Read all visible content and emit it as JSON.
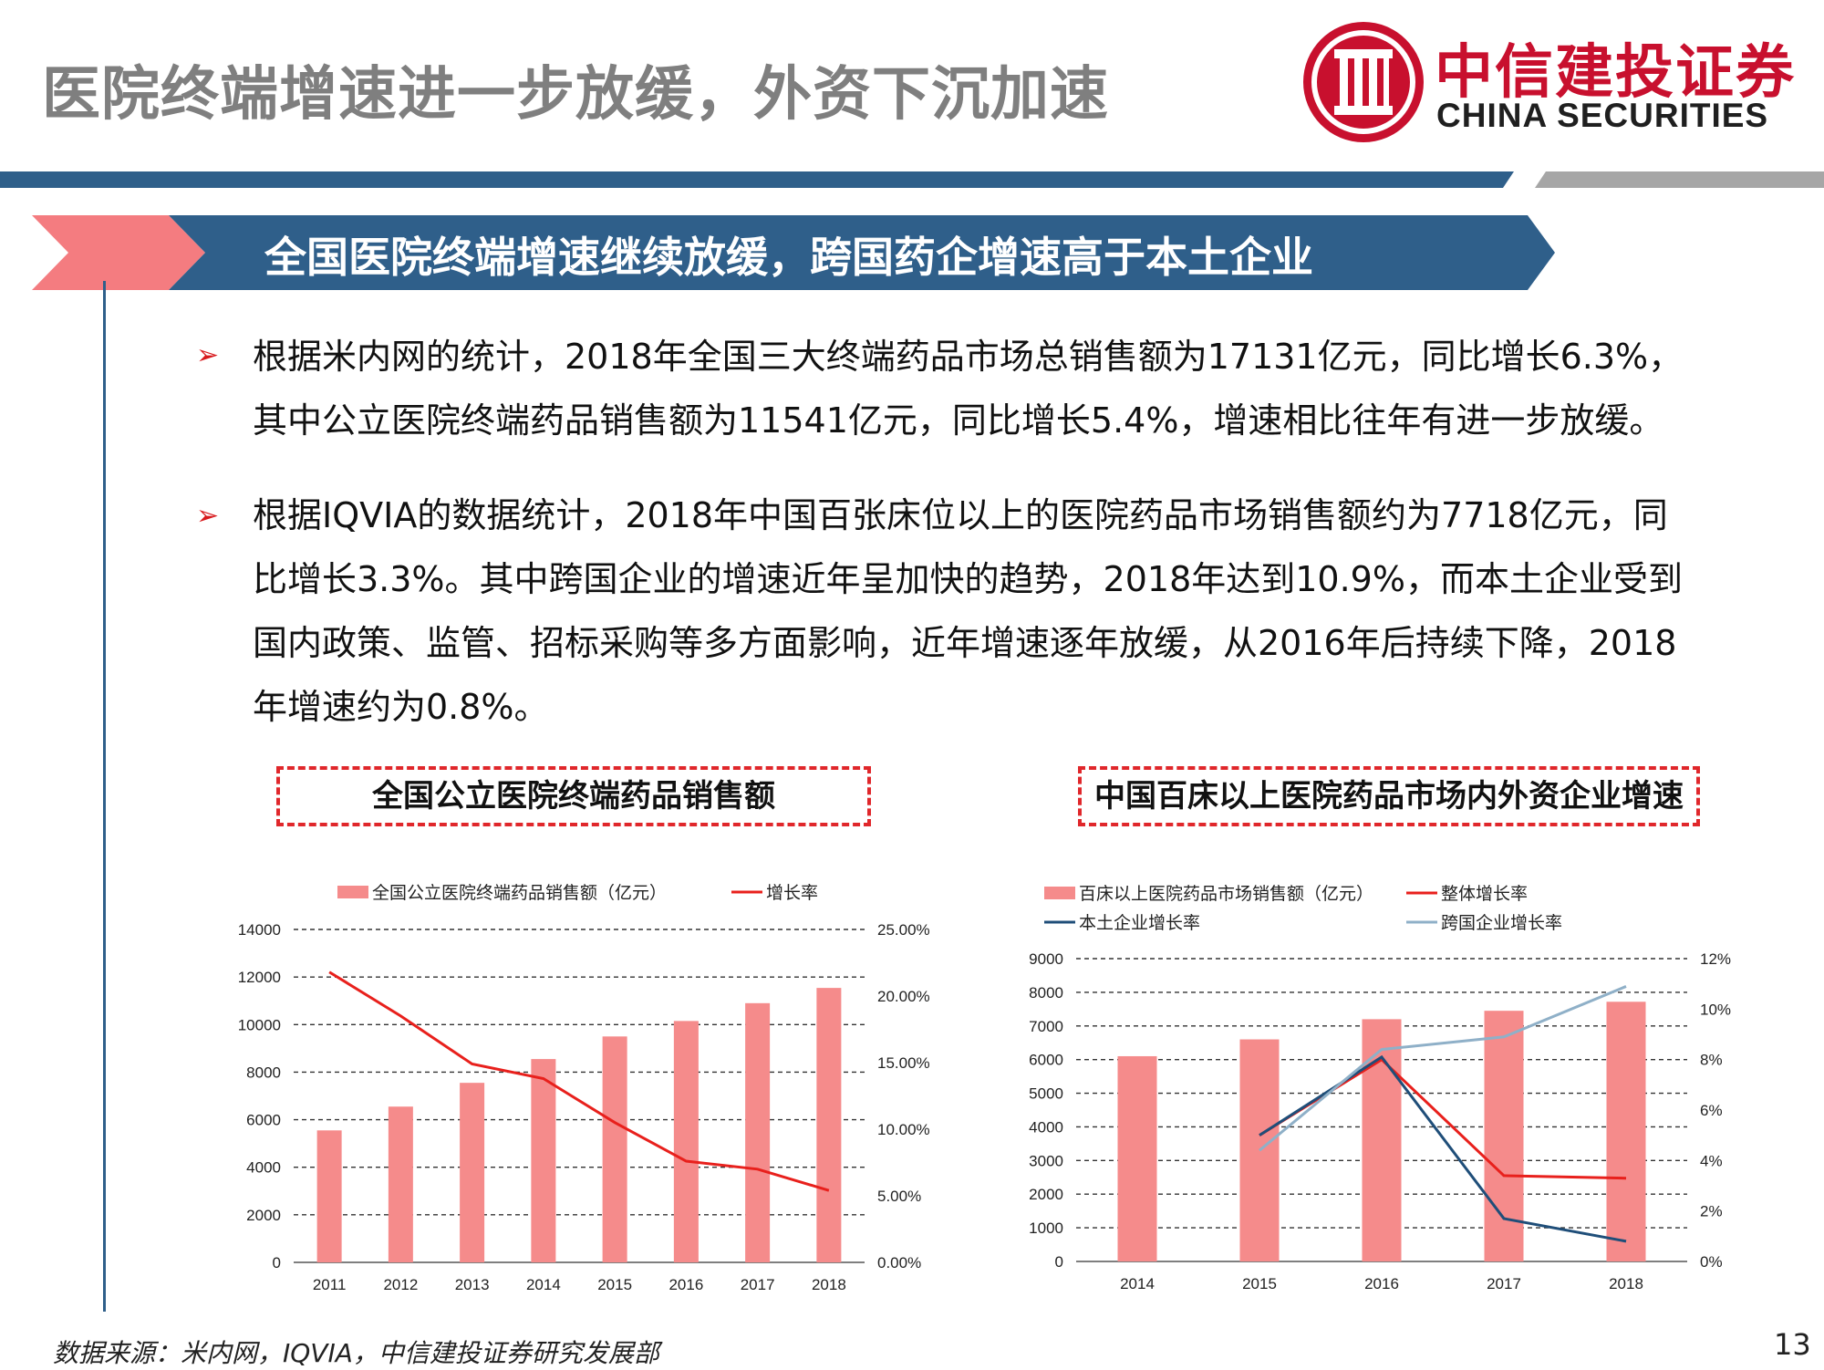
{
  "header": {
    "title": "医院终端增速进一步放缓，外资下沉加速",
    "logo_cn": "中信建投证券",
    "logo_en": "CHINA SECURITIES"
  },
  "banner": {
    "text": "全国医院终端增速继续放缓，跨国药企增速高于本土企业"
  },
  "bullets": [
    {
      "symbol": "➢",
      "lines": [
        "根据米内网的统计，2018年全国三大终端药品市场总销售额为17131亿元，同比增长6.3%，",
        "其中公立医院终端药品销售额为11541亿元，同比增长5.4%，增速相比往年有进一步放缓。"
      ]
    },
    {
      "symbol": "➢",
      "lines": [
        "根据IQVIA的数据统计，2018年中国百张床位以上的医院药品市场销售额约为7718亿元，同",
        "比增长3.3%。其中跨国企业的增速近年呈加快的趋势，2018年达到10.9%，而本土企业受到",
        "国内政策、监管、招标采购等多方面影响，近年增速逐年放缓，从2016年后持续下降，2018",
        "年增速约为0.8%。"
      ]
    }
  ],
  "left_chart_title": "全国公立医院终端药品销售额",
  "right_chart_title": "中国百床以上医院药品市场内外资企业增速",
  "chart_data": [
    {
      "type": "bar",
      "categories": [
        "2011",
        "2012",
        "2013",
        "2014",
        "2015",
        "2016",
        "2017",
        "2018"
      ],
      "series": [
        {
          "name": "全国公立医院终端药品销售额（亿元）",
          "kind": "bar",
          "axis": "left",
          "color": "#f58b8b",
          "values": [
            5550,
            6550,
            7550,
            8550,
            9500,
            10150,
            10900,
            11541
          ]
        },
        {
          "name": "增长率",
          "kind": "line",
          "axis": "right",
          "color": "#e8201c",
          "values": [
            21.8,
            18.5,
            14.9,
            13.8,
            10.5,
            7.6,
            7.0,
            5.4
          ]
        }
      ],
      "ylim_left": [
        0,
        14000
      ],
      "yticks_left": [
        "0",
        "2000",
        "4000",
        "6000",
        "8000",
        "10000",
        "12000",
        "14000"
      ],
      "ylim_right": [
        0,
        25
      ],
      "yticks_right": [
        "0.00%",
        "5.00%",
        "10.00%",
        "15.00%",
        "20.00%",
        "25.00%"
      ],
      "grid": true,
      "legend_position": "top"
    },
    {
      "type": "bar",
      "categories": [
        "2014",
        "2015",
        "2016",
        "2017",
        "2018"
      ],
      "series": [
        {
          "name": "百床以上医院药品市场销售额（亿元）",
          "kind": "bar",
          "axis": "left",
          "color": "#f58b8b",
          "values": [
            6100,
            6600,
            7200,
            7450,
            7718
          ]
        },
        {
          "name": "整体增长率",
          "kind": "line",
          "axis": "right",
          "color": "#e8201c",
          "values": [
            null,
            5.0,
            8.0,
            3.4,
            3.3
          ]
        },
        {
          "name": "本土企业增长率",
          "kind": "line",
          "axis": "right",
          "color": "#1f4e79",
          "values": [
            null,
            5.0,
            8.1,
            1.7,
            0.8
          ]
        },
        {
          "name": "跨国企业增长率",
          "kind": "line",
          "axis": "right",
          "color": "#8fb0c8",
          "values": [
            null,
            4.4,
            8.4,
            8.9,
            10.9
          ]
        }
      ],
      "ylim_left": [
        0,
        9000
      ],
      "yticks_left": [
        "0",
        "1000",
        "2000",
        "3000",
        "4000",
        "5000",
        "6000",
        "7000",
        "8000",
        "9000"
      ],
      "ylim_right": [
        0,
        12
      ],
      "yticks_right": [
        "0%",
        "2%",
        "4%",
        "6%",
        "8%",
        "10%",
        "12%"
      ],
      "grid": true,
      "legend_position": "top"
    }
  ],
  "footer": {
    "source": "数据来源：米内网，IQVIA，中信建投证券研究发展部",
    "page_number": "13"
  },
  "colors": {
    "brand_red": "#c8102e",
    "navy": "#2f5f8a",
    "banner_pink": "#f47c80",
    "gray_title": "#7f7f7f"
  }
}
